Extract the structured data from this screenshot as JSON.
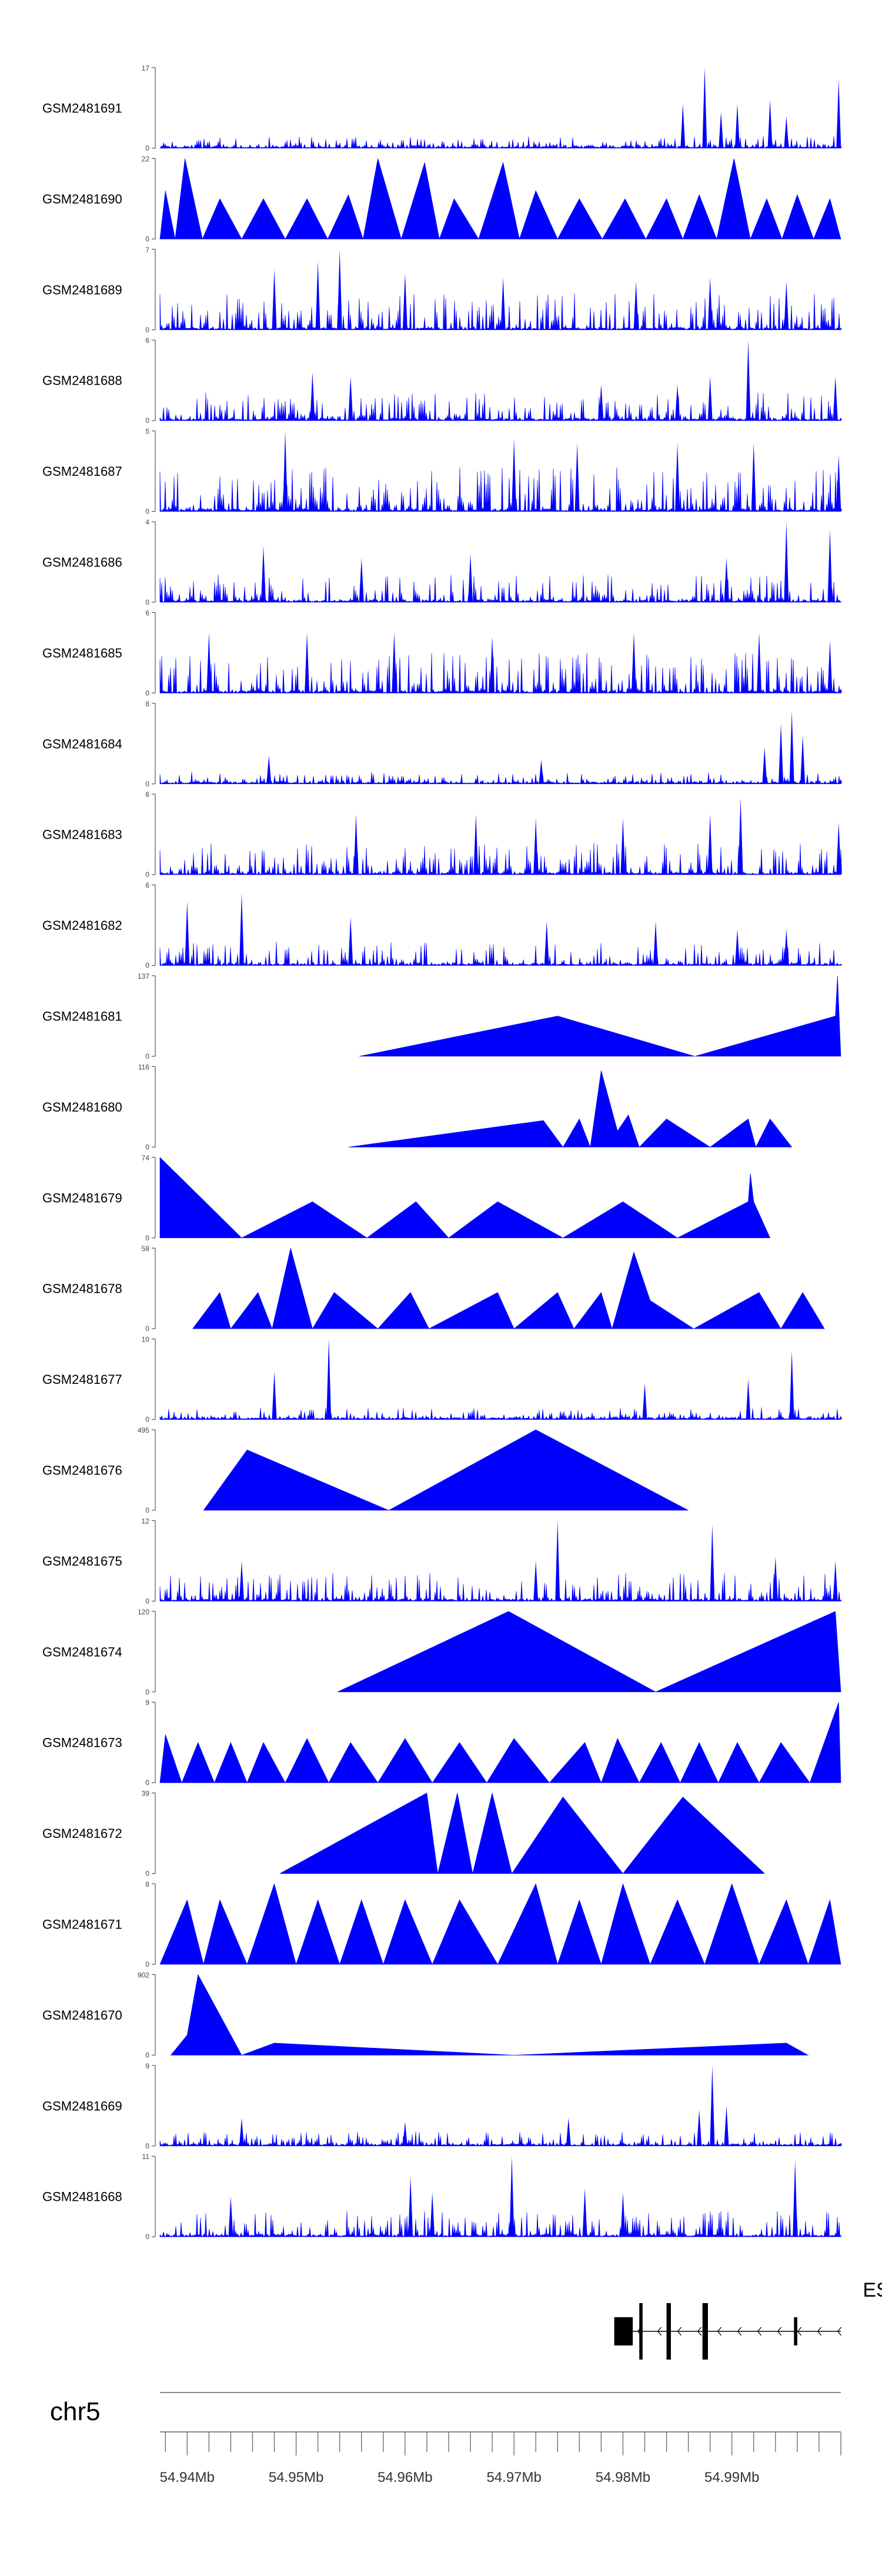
{
  "colors": {
    "signal": "#0000ff",
    "axis": "#555555",
    "gene": "#000000",
    "ruler": "#666666"
  },
  "chart_data": {
    "type": "area",
    "title": "",
    "xlabel": "",
    "ylabel": "",
    "xlim": [
      54.9375,
      55.0
    ],
    "x_unit": "Mb",
    "chromosome": "chr5",
    "x_tick_labels": [
      "54.94Mb",
      "54.95Mb",
      "54.96Mb",
      "54.97Mb",
      "54.98Mb",
      "54.99Mb"
    ],
    "x_tick_values": [
      54.94,
      54.95,
      54.96,
      54.97,
      54.98,
      54.99
    ],
    "gene": {
      "label": "ES",
      "exons": [
        {
          "start": 54.9792,
          "end": 54.9809,
          "size": "large"
        },
        {
          "start": 54.9815,
          "end": 54.9818,
          "size": "small"
        },
        {
          "start": 54.984,
          "end": 54.9844,
          "size": "small"
        },
        {
          "start": 54.9873,
          "end": 54.9878,
          "size": "small"
        },
        {
          "start": 54.9957,
          "end": 54.996,
          "size": "small"
        }
      ],
      "strand": "-"
    },
    "tracks": [
      {
        "name": "GSM2481691",
        "ymax": 17,
        "pattern": "noise",
        "amp": 0.15,
        "seed": 1,
        "peaks": [
          [
            54.9875,
            1.0
          ],
          [
            54.9855,
            0.55
          ],
          [
            54.9905,
            0.55
          ],
          [
            54.9935,
            0.6
          ],
          [
            54.9998,
            0.85
          ],
          [
            54.989,
            0.45
          ],
          [
            54.995,
            0.4
          ]
        ]
      },
      {
        "name": "GSM2481690",
        "ymax": 22,
        "pattern": "tri",
        "amp": 0.5,
        "peaks": [
          [
            54.938,
            0.6
          ],
          [
            54.9398,
            1.0
          ],
          [
            54.943,
            0.5
          ],
          [
            54.947,
            0.5
          ],
          [
            54.951,
            0.5
          ],
          [
            54.9548,
            0.55
          ],
          [
            54.9575,
            1.0
          ],
          [
            54.9618,
            0.95
          ],
          [
            54.9645,
            0.5
          ],
          [
            54.969,
            0.95
          ],
          [
            54.972,
            0.6
          ],
          [
            54.976,
            0.5
          ],
          [
            54.9802,
            0.5
          ],
          [
            54.984,
            0.5
          ],
          [
            54.987,
            0.55
          ],
          [
            54.9902,
            1.0
          ],
          [
            54.9932,
            0.5
          ],
          [
            54.996,
            0.55
          ],
          [
            54.999,
            0.5
          ]
        ]
      },
      {
        "name": "GSM2481689",
        "ymax": 7,
        "pattern": "noise",
        "amp": 0.45,
        "seed": 3,
        "peaks": [
          [
            54.954,
            1.0
          ],
          [
            54.952,
            0.85
          ],
          [
            54.948,
            0.75
          ],
          [
            54.96,
            0.7
          ],
          [
            54.969,
            0.65
          ],
          [
            54.9812,
            0.6
          ],
          [
            54.988,
            0.65
          ],
          [
            54.995,
            0.6
          ]
        ]
      },
      {
        "name": "GSM2481688",
        "ymax": 6,
        "pattern": "noise",
        "amp": 0.35,
        "seed": 4,
        "peaks": [
          [
            54.9915,
            1.0
          ],
          [
            54.988,
            0.55
          ],
          [
            54.9515,
            0.6
          ],
          [
            54.955,
            0.55
          ],
          [
            54.9995,
            0.55
          ],
          [
            54.978,
            0.45
          ],
          [
            54.985,
            0.45
          ]
        ]
      },
      {
        "name": "GSM2481687",
        "ymax": 5,
        "pattern": "noise",
        "amp": 0.55,
        "seed": 5,
        "peaks": [
          [
            54.949,
            1.0
          ],
          [
            54.97,
            0.9
          ],
          [
            54.9758,
            0.85
          ],
          [
            54.985,
            0.85
          ],
          [
            54.992,
            0.85
          ],
          [
            54.9998,
            0.7
          ]
        ]
      },
      {
        "name": "GSM2481686",
        "ymax": 4,
        "pattern": "noise",
        "amp": 0.35,
        "seed": 6,
        "peaks": [
          [
            54.995,
            1.0
          ],
          [
            54.999,
            0.9
          ],
          [
            54.947,
            0.7
          ],
          [
            54.956,
            0.55
          ],
          [
            54.966,
            0.6
          ],
          [
            54.9895,
            0.55
          ]
        ]
      },
      {
        "name": "GSM2481685",
        "ymax": 6,
        "pattern": "noise",
        "amp": 0.5,
        "seed": 7,
        "peaks": [
          [
            54.942,
            0.75
          ],
          [
            54.951,
            0.75
          ],
          [
            54.959,
            0.75
          ],
          [
            54.968,
            0.7
          ],
          [
            54.981,
            0.75
          ],
          [
            54.9925,
            0.75
          ],
          [
            54.999,
            0.65
          ]
        ]
      },
      {
        "name": "GSM2481684",
        "ymax": 8,
        "pattern": "noise",
        "amp": 0.15,
        "seed": 8,
        "peaks": [
          [
            54.9955,
            0.9
          ],
          [
            54.9945,
            0.75
          ],
          [
            54.9965,
            0.6
          ],
          [
            54.993,
            0.45
          ],
          [
            54.9475,
            0.35
          ],
          [
            54.9725,
            0.3
          ]
        ]
      },
      {
        "name": "GSM2481683",
        "ymax": 6,
        "pattern": "noise",
        "amp": 0.4,
        "seed": 9,
        "peaks": [
          [
            54.9555,
            0.75
          ],
          [
            54.9665,
            0.75
          ],
          [
            54.972,
            0.7
          ],
          [
            54.98,
            0.7
          ],
          [
            54.988,
            0.75
          ],
          [
            54.9908,
            0.95
          ],
          [
            54.9998,
            0.65
          ]
        ]
      },
      {
        "name": "GSM2481682",
        "ymax": 6,
        "pattern": "noise",
        "amp": 0.3,
        "seed": 10,
        "peaks": [
          [
            54.945,
            0.9
          ],
          [
            54.94,
            0.8
          ],
          [
            54.955,
            0.6
          ],
          [
            54.973,
            0.55
          ],
          [
            54.983,
            0.55
          ],
          [
            54.9905,
            0.45
          ],
          [
            54.995,
            0.45
          ]
        ]
      },
      {
        "name": "GSM2481681",
        "ymax": 137,
        "pattern": "poly",
        "points": [
          [
            54.9558,
            0.0
          ],
          [
            54.974,
            0.5
          ],
          [
            54.9866,
            0.0
          ],
          [
            54.9995,
            0.5
          ],
          [
            54.9997,
            1.0
          ],
          [
            55.0,
            0.0
          ]
        ]
      },
      {
        "name": "GSM2481680",
        "ymax": 116,
        "pattern": "poly",
        "points": [
          [
            54.9548,
            0.0
          ],
          [
            54.9727,
            0.33
          ],
          [
            54.9745,
            0.0
          ],
          [
            54.976,
            0.35
          ],
          [
            54.977,
            0.0
          ],
          [
            54.978,
            0.95
          ],
          [
            54.9795,
            0.2
          ],
          [
            54.9805,
            0.4
          ],
          [
            54.9815,
            0.0
          ],
          [
            54.984,
            0.35
          ],
          [
            54.988,
            0.0
          ],
          [
            54.9915,
            0.35
          ],
          [
            54.9922,
            0.0
          ],
          [
            54.9935,
            0.35
          ],
          [
            54.9955,
            0.0
          ]
        ]
      },
      {
        "name": "GSM2481679",
        "ymax": 74,
        "pattern": "poly",
        "points": [
          [
            54.9375,
            1.0
          ],
          [
            54.945,
            0.0
          ],
          [
            54.9515,
            0.45
          ],
          [
            54.9565,
            0.0
          ],
          [
            54.961,
            0.45
          ],
          [
            54.964,
            0.0
          ],
          [
            54.9685,
            0.45
          ],
          [
            54.9745,
            0.0
          ],
          [
            54.98,
            0.45
          ],
          [
            54.985,
            0.0
          ],
          [
            54.9915,
            0.45
          ],
          [
            54.9917,
            0.8
          ],
          [
            54.992,
            0.45
          ],
          [
            54.9935,
            0.0
          ]
        ]
      },
      {
        "name": "GSM2481678",
        "ymax": 58,
        "pattern": "poly",
        "points": [
          [
            54.9405,
            0.0
          ],
          [
            54.943,
            0.45
          ],
          [
            54.944,
            0.0
          ],
          [
            54.9465,
            0.45
          ],
          [
            54.9478,
            0.0
          ],
          [
            54.9495,
            1.0
          ],
          [
            54.9515,
            0.0
          ],
          [
            54.9535,
            0.45
          ],
          [
            54.9575,
            0.0
          ],
          [
            54.9605,
            0.45
          ],
          [
            54.9622,
            0.0
          ],
          [
            54.9685,
            0.45
          ],
          [
            54.97,
            0.0
          ],
          [
            54.974,
            0.45
          ],
          [
            54.9755,
            0.0
          ],
          [
            54.978,
            0.45
          ],
          [
            54.979,
            0.0
          ],
          [
            54.981,
            0.95
          ],
          [
            54.9825,
            0.35
          ],
          [
            54.9865,
            0.0
          ],
          [
            54.9925,
            0.45
          ],
          [
            54.9945,
            0.0
          ],
          [
            54.9965,
            0.45
          ],
          [
            54.9985,
            0.0
          ]
        ]
      },
      {
        "name": "GSM2481677",
        "ymax": 10,
        "pattern": "noise",
        "amp": 0.15,
        "seed": 15,
        "peaks": [
          [
            54.953,
            1.0
          ],
          [
            54.948,
            0.6
          ],
          [
            54.9955,
            0.85
          ],
          [
            54.9915,
            0.5
          ],
          [
            54.982,
            0.45
          ]
        ]
      },
      {
        "name": "GSM2481676",
        "ymax": 495,
        "pattern": "poly",
        "points": [
          [
            54.9415,
            0.0
          ],
          [
            54.9455,
            0.75
          ],
          [
            54.9585,
            0.0
          ],
          [
            54.972,
            1.0
          ],
          [
            54.986,
            0.0
          ]
        ]
      },
      {
        "name": "GSM2481675",
        "ymax": 12,
        "pattern": "noise",
        "amp": 0.35,
        "seed": 17,
        "peaks": [
          [
            54.974,
            1.0
          ],
          [
            54.972,
            0.5
          ],
          [
            54.9882,
            0.95
          ],
          [
            54.994,
            0.55
          ],
          [
            54.9995,
            0.5
          ],
          [
            54.945,
            0.5
          ]
        ]
      },
      {
        "name": "GSM2481674",
        "ymax": 120,
        "pattern": "poly",
        "points": [
          [
            54.9538,
            0.0
          ],
          [
            54.9695,
            1.0
          ],
          [
            54.983,
            0.0
          ],
          [
            54.9995,
            1.0
          ],
          [
            55.0,
            0.0
          ]
        ]
      },
      {
        "name": "GSM2481673",
        "ymax": 9,
        "pattern": "tri",
        "amp": 0.5,
        "peaks": [
          [
            54.938,
            0.6
          ],
          [
            54.941,
            0.5
          ],
          [
            54.944,
            0.5
          ],
          [
            54.947,
            0.5
          ],
          [
            54.951,
            0.55
          ],
          [
            54.955,
            0.5
          ],
          [
            54.96,
            0.55
          ],
          [
            54.965,
            0.5
          ],
          [
            54.97,
            0.55
          ],
          [
            54.9765,
            0.5
          ],
          [
            54.9795,
            0.55
          ],
          [
            54.9835,
            0.5
          ],
          [
            54.987,
            0.5
          ],
          [
            54.9905,
            0.5
          ],
          [
            54.9945,
            0.5
          ],
          [
            54.9998,
            1.0
          ]
        ]
      },
      {
        "name": "GSM2481672",
        "ymax": 39,
        "pattern": "poly",
        "points": [
          [
            54.9485,
            0.0
          ],
          [
            54.962,
            1.0
          ],
          [
            54.963,
            0.0
          ],
          [
            54.9648,
            1.0
          ],
          [
            54.9662,
            0.0
          ],
          [
            54.968,
            1.0
          ],
          [
            54.9698,
            0.0
          ],
          [
            54.9745,
            0.95
          ],
          [
            54.98,
            0.0
          ],
          [
            54.9855,
            0.95
          ],
          [
            54.993,
            0.0
          ]
        ]
      },
      {
        "name": "GSM2481671",
        "ymax": 8,
        "pattern": "tri",
        "amp": 0.9,
        "peaks": [
          [
            54.94,
            0.8
          ],
          [
            54.943,
            0.8
          ],
          [
            54.948,
            1.0
          ],
          [
            54.952,
            0.8
          ],
          [
            54.956,
            0.8
          ],
          [
            54.96,
            0.8
          ],
          [
            54.965,
            0.8
          ],
          [
            54.972,
            1.0
          ],
          [
            54.976,
            0.8
          ],
          [
            54.98,
            1.0
          ],
          [
            54.985,
            0.8
          ],
          [
            54.99,
            1.0
          ],
          [
            54.995,
            0.8
          ],
          [
            54.999,
            0.8
          ]
        ]
      },
      {
        "name": "GSM2481670",
        "ymax": 902,
        "pattern": "poly",
        "points": [
          [
            54.9385,
            0.0
          ],
          [
            54.94,
            0.25
          ],
          [
            54.941,
            1.0
          ],
          [
            54.945,
            0.0
          ],
          [
            54.948,
            0.15
          ],
          [
            54.97,
            0.0
          ],
          [
            54.995,
            0.15
          ],
          [
            54.997,
            0.0
          ]
        ]
      },
      {
        "name": "GSM2481669",
        "ymax": 9,
        "pattern": "noise",
        "amp": 0.18,
        "seed": 23,
        "peaks": [
          [
            54.9882,
            1.0
          ],
          [
            54.987,
            0.45
          ],
          [
            54.9895,
            0.5
          ],
          [
            54.96,
            0.3
          ],
          [
            54.945,
            0.35
          ],
          [
            54.975,
            0.35
          ]
        ]
      },
      {
        "name": "GSM2481668",
        "ymax": 11,
        "pattern": "noise",
        "amp": 0.32,
        "seed": 24,
        "peaks": [
          [
            54.9698,
            1.0
          ],
          [
            54.9605,
            0.75
          ],
          [
            54.9625,
            0.55
          ],
          [
            54.9765,
            0.6
          ],
          [
            54.9958,
            0.95
          ],
          [
            54.98,
            0.55
          ],
          [
            54.944,
            0.5
          ]
        ]
      }
    ]
  }
}
